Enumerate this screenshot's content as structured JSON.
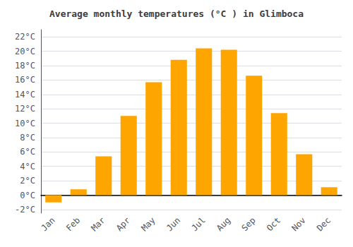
{
  "chart_data": {
    "type": "bar",
    "title": "Average monthly temperatures (°C ) in Glimboca",
    "categories": [
      "Jan",
      "Feb",
      "Mar",
      "Apr",
      "May",
      "Jun",
      "Jul",
      "Aug",
      "Sep",
      "Oct",
      "Nov",
      "Dec"
    ],
    "values": [
      -1.0,
      0.8,
      5.4,
      11.0,
      15.7,
      18.8,
      20.4,
      20.2,
      16.6,
      11.4,
      5.7,
      1.1
    ],
    "color": "#FFA500",
    "ylim": [
      -2.5,
      23
    ],
    "yticks": [
      {
        "value": -2,
        "label": "-2°C"
      },
      {
        "value": 0,
        "label": "0°C"
      },
      {
        "value": 2,
        "label": "2°C"
      },
      {
        "value": 4,
        "label": "4°C"
      },
      {
        "value": 6,
        "label": "6°C"
      },
      {
        "value": 8,
        "label": "8°C"
      },
      {
        "value": 10,
        "label": "10°C"
      },
      {
        "value": 12,
        "label": "12°C"
      },
      {
        "value": 14,
        "label": "14°C"
      },
      {
        "value": 16,
        "label": "16°C"
      },
      {
        "value": 18,
        "label": "18°C"
      },
      {
        "value": 20,
        "label": "20°C"
      },
      {
        "value": 22,
        "label": "22°C"
      }
    ],
    "grid": true
  }
}
